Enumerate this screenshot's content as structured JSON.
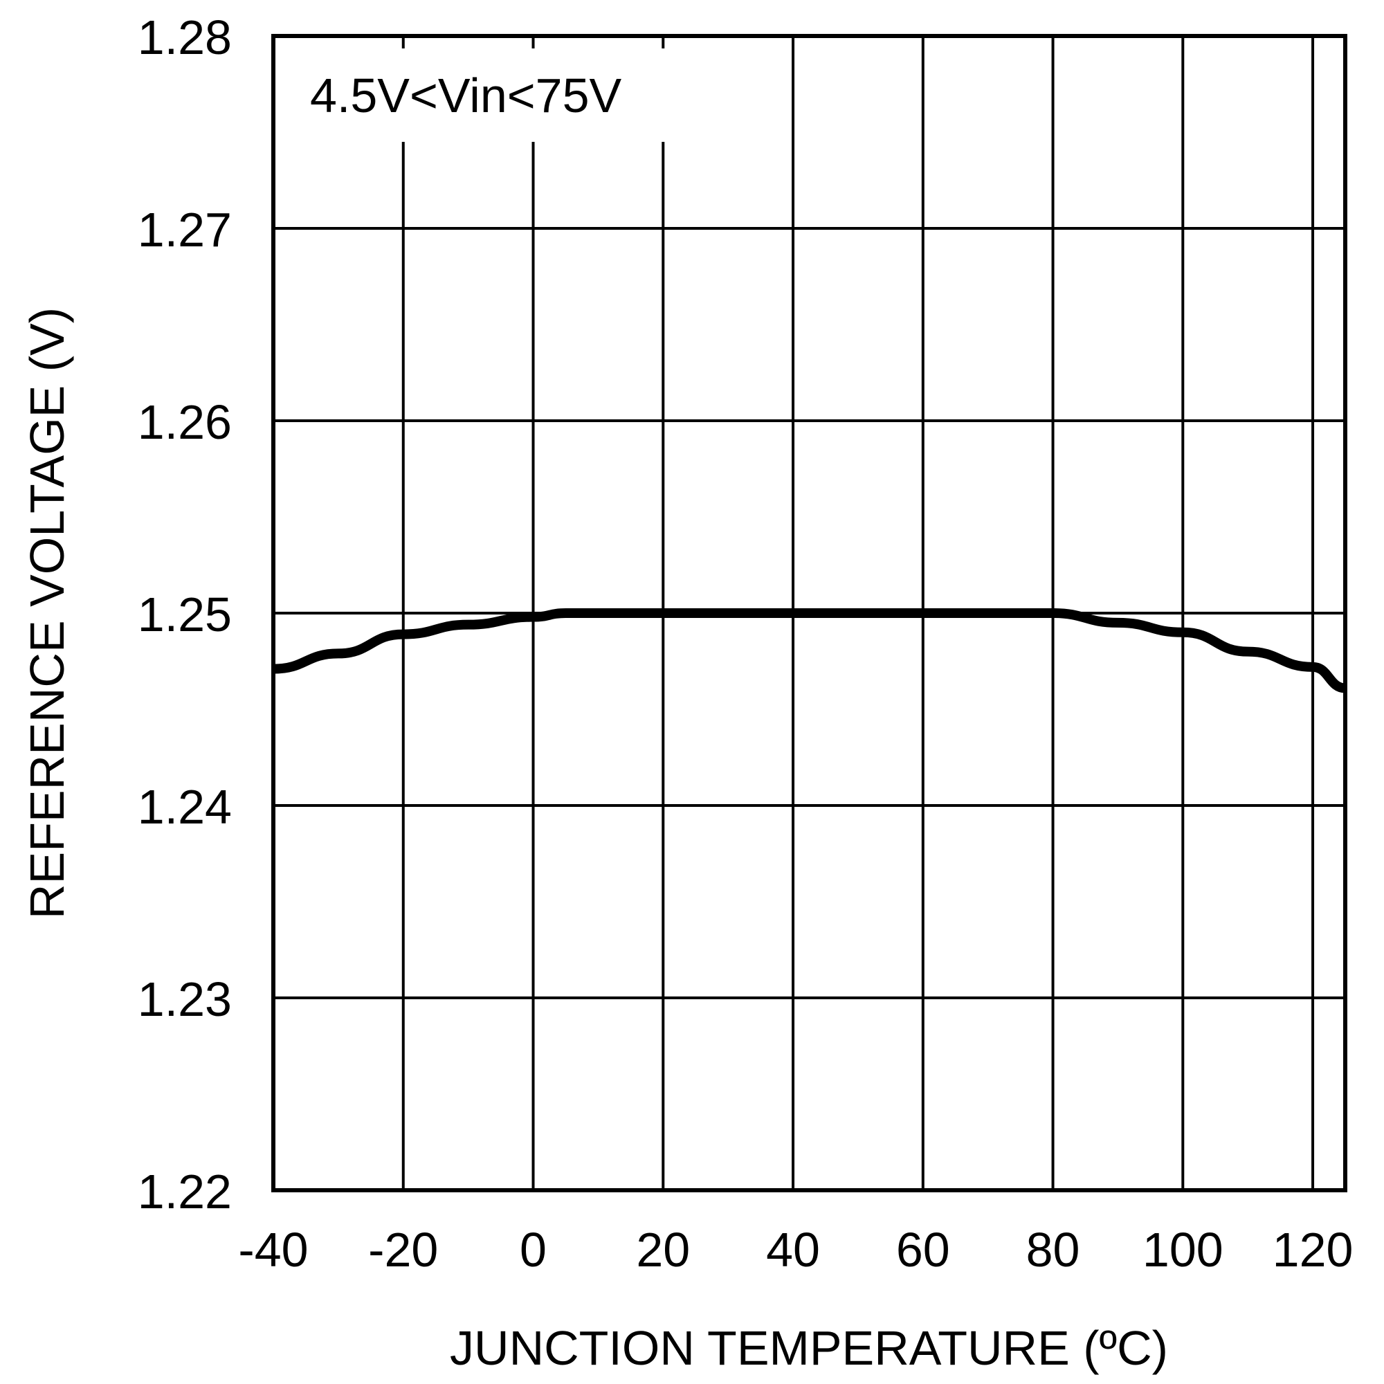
{
  "chart_data": {
    "type": "line",
    "title": "",
    "annotation": "4.5V<Vin<75V",
    "xlabel": "JUNCTION TEMPERATURE (ºC)",
    "ylabel": "REFERENCE VOLTAGE (V)",
    "xlim": [
      -40,
      125
    ],
    "ylim": [
      1.22,
      1.28
    ],
    "x_ticks": [
      -40,
      -20,
      0,
      20,
      40,
      60,
      80,
      100,
      120
    ],
    "x_tick_labels": [
      "-40",
      "-20",
      "0",
      "20",
      "40",
      "60",
      "80",
      "100",
      "120"
    ],
    "y_ticks": [
      1.22,
      1.23,
      1.24,
      1.25,
      1.26,
      1.27,
      1.28
    ],
    "y_tick_labels": [
      "1.22",
      "1.23",
      "1.24",
      "1.25",
      "1.26",
      "1.27",
      "1.28"
    ],
    "grid": true,
    "legend": null,
    "series": [
      {
        "name": "Reference Voltage",
        "color": "#000000",
        "x": [
          -40,
          -30,
          -20,
          -10,
          0,
          5,
          10,
          20,
          30,
          40,
          50,
          60,
          70,
          80,
          90,
          100,
          110,
          120,
          125
        ],
        "values": [
          1.2471,
          1.2479,
          1.2489,
          1.2494,
          1.2498,
          1.25,
          1.25,
          1.25,
          1.25,
          1.25,
          1.25,
          1.25,
          1.25,
          1.25,
          1.2495,
          1.249,
          1.248,
          1.2472,
          1.2461
        ]
      }
    ]
  },
  "labels": {
    "annotation": "4.5V<Vin<75V",
    "xlabel": "JUNCTION TEMPERATURE (ºC)",
    "ylabel": "REFERENCE VOLTAGE (V)"
  }
}
